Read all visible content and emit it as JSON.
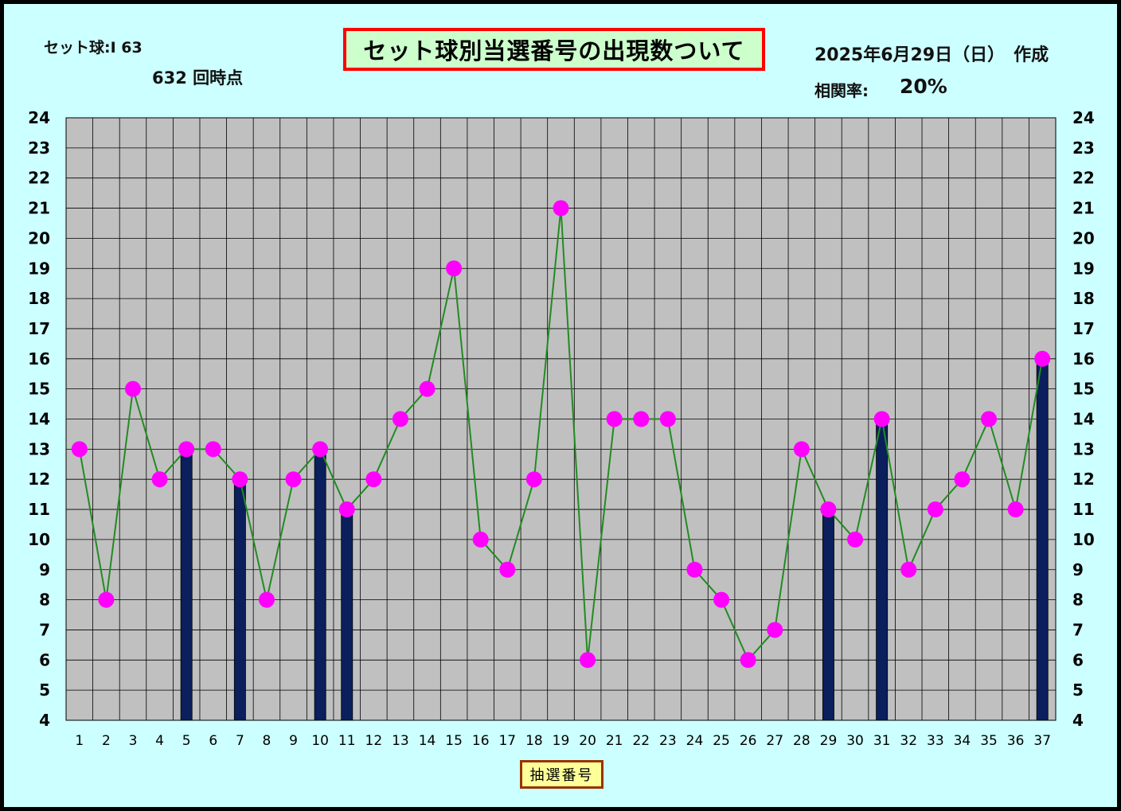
{
  "header": {
    "set_ball": "セット球:I 63",
    "draw_count": "632 回時点",
    "title": "セット球別当選番号の出現数ついて",
    "date": "2025年6月29日（日）　作成",
    "correlation_label": "相関率:",
    "correlation_value": "20%"
  },
  "colors": {
    "background": "#ccffff",
    "plot_area": "#c0c0c0",
    "bar": "#0a1f5c",
    "line": "#228b22",
    "marker": "#ff00ff",
    "title_border": "#ff0000",
    "title_bg": "#ccffcc"
  },
  "chart_data": {
    "type": "line",
    "title": "セット球別当選番号の出現数ついて",
    "xlabel": "抽選番号",
    "ylabel": "",
    "ylim": [
      4,
      24
    ],
    "y_ticks": [
      4,
      5,
      6,
      7,
      8,
      9,
      10,
      11,
      12,
      13,
      14,
      15,
      16,
      17,
      18,
      19,
      20,
      21,
      22,
      23,
      24
    ],
    "categories": [
      "1",
      "2",
      "3",
      "4",
      "5",
      "6",
      "7",
      "8",
      "9",
      "10",
      "11",
      "12",
      "13",
      "14",
      "15",
      "16",
      "17",
      "18",
      "19",
      "20",
      "21",
      "22",
      "23",
      "24",
      "25",
      "26",
      "27",
      "28",
      "29",
      "30",
      "31",
      "32",
      "33",
      "34",
      "35",
      "36",
      "37"
    ],
    "series": [
      {
        "type": "bar",
        "values": [
          null,
          null,
          null,
          null,
          13,
          null,
          12,
          null,
          null,
          13,
          11,
          null,
          null,
          null,
          null,
          null,
          null,
          null,
          null,
          null,
          null,
          null,
          null,
          null,
          null,
          null,
          null,
          null,
          11,
          null,
          14,
          null,
          null,
          null,
          null,
          null,
          16
        ]
      },
      {
        "type": "line",
        "values": [
          13,
          8,
          15,
          12,
          13,
          13,
          12,
          8,
          12,
          13,
          11,
          12,
          14,
          15,
          19,
          10,
          9,
          12,
          21,
          6,
          14,
          14,
          14,
          9,
          8,
          6,
          7,
          13,
          11,
          10,
          14,
          9,
          11,
          12,
          14,
          11,
          16
        ]
      }
    ],
    "grid": true,
    "secondary_y_axis": true
  }
}
